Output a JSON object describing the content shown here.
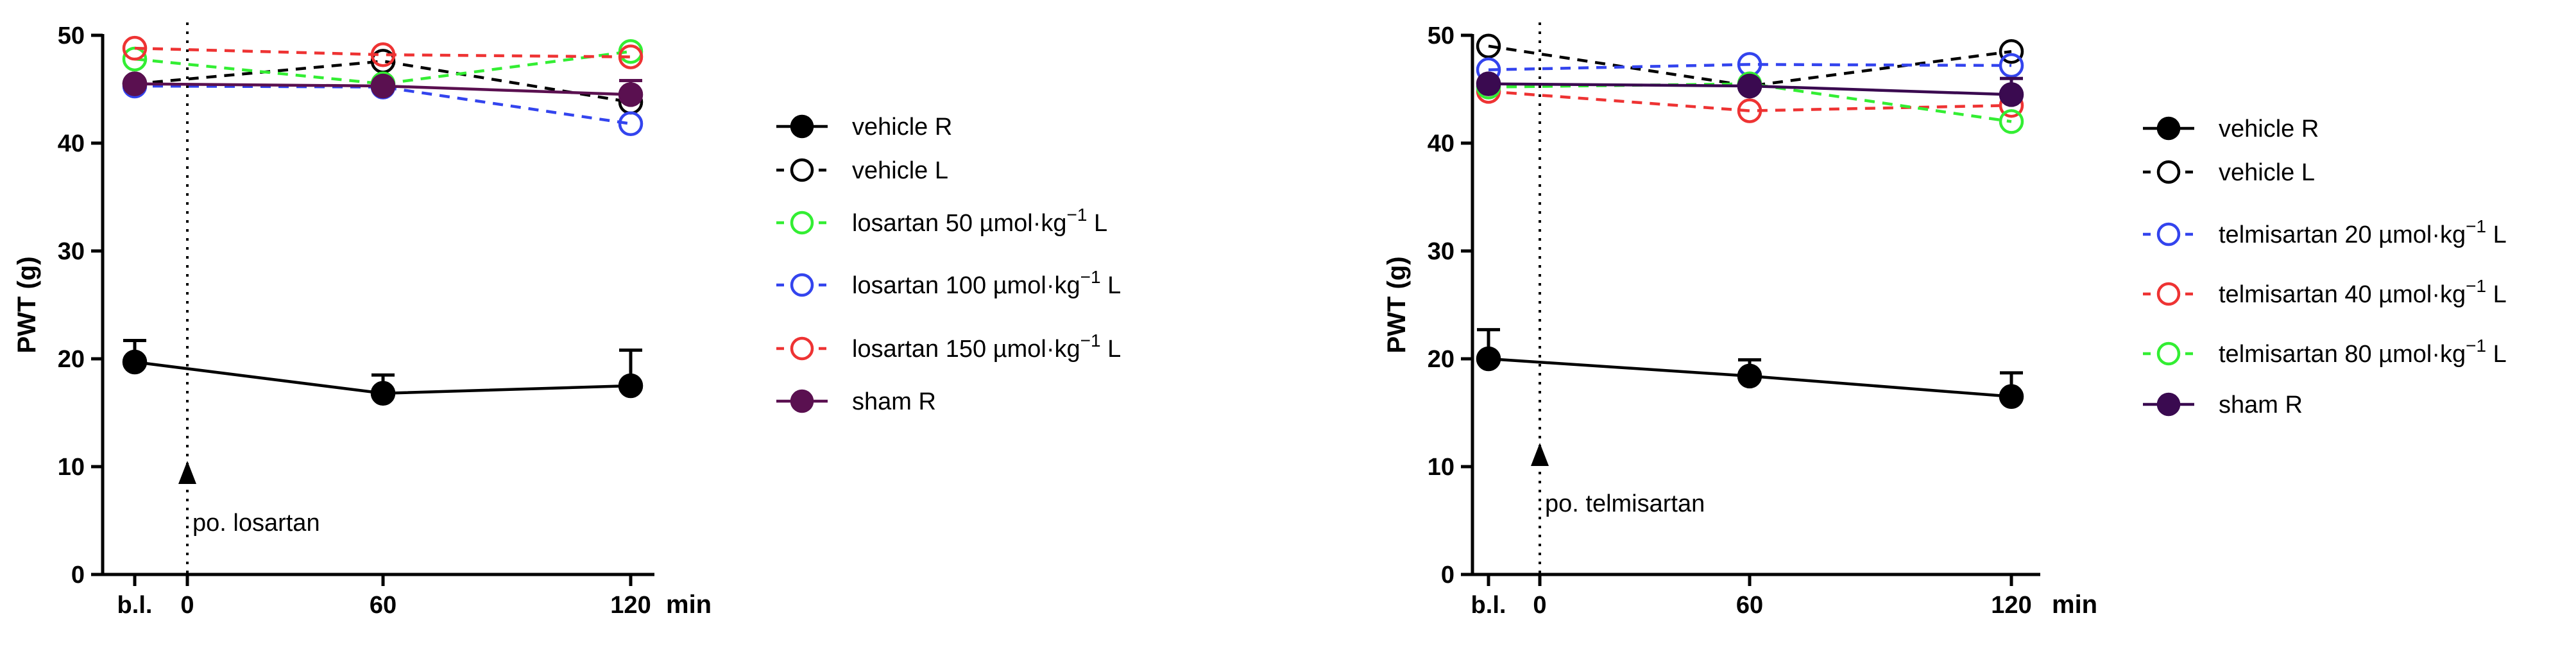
{
  "chart_data": [
    {
      "type": "line",
      "id": "losartan",
      "ylabel": "PWT (g)",
      "xlabel": "min",
      "ylim": [
        0,
        50
      ],
      "yticks": [
        0,
        10,
        20,
        30,
        40,
        50
      ],
      "xticks": [
        {
          "x": -15,
          "label": "b.l."
        },
        {
          "x": 0,
          "label": "0"
        },
        {
          "x": 60,
          "label": "60"
        },
        {
          "x": 120,
          "label": "120"
        }
      ],
      "annotation": "po. losartan",
      "series": [
        {
          "name": "vehicle R",
          "color": "#000000",
          "dashed": false,
          "filled": true,
          "x": [
            -15,
            60,
            120
          ],
          "y": [
            19.7,
            16.8,
            17.5
          ],
          "err": [
            2.0,
            1.7,
            3.3
          ]
        },
        {
          "name": "vehicle L",
          "color": "#000000",
          "dashed": true,
          "filled": false,
          "x": [
            -15,
            60,
            120
          ],
          "y": [
            45.5,
            47.6,
            43.8
          ],
          "err": [
            0,
            0,
            0
          ]
        },
        {
          "name": "losartan 50 µmol·kg",
          "sup": "−1",
          "suffix": " L",
          "color": "#33ee33",
          "dashed": true,
          "filled": false,
          "x": [
            -15,
            60,
            120
          ],
          "y": [
            47.8,
            45.5,
            48.5
          ],
          "err": [
            0,
            0,
            0
          ]
        },
        {
          "name": "losartan 100 µmol·kg",
          "sup": "−1",
          "suffix": " L",
          "color": "#3344ee",
          "dashed": true,
          "filled": false,
          "x": [
            -15,
            60,
            120
          ],
          "y": [
            45.3,
            45.2,
            41.8
          ],
          "err": [
            0,
            0,
            0
          ]
        },
        {
          "name": "losartan 150 µmol·kg",
          "sup": "−1",
          "suffix": " L",
          "color": "#ee3333",
          "dashed": true,
          "filled": false,
          "x": [
            -15,
            60,
            120
          ],
          "y": [
            48.8,
            48.2,
            48.0
          ],
          "err": [
            0,
            0,
            0
          ]
        },
        {
          "name": "sham R",
          "color": "#5a1050",
          "dashed": false,
          "filled": true,
          "x": [
            -15,
            60,
            120
          ],
          "y": [
            45.5,
            45.3,
            44.5
          ],
          "err": [
            0,
            0,
            1.3
          ]
        }
      ]
    },
    {
      "type": "line",
      "id": "telmisartan",
      "ylabel": "PWT (g)",
      "xlabel": "min",
      "ylim": [
        0,
        50
      ],
      "yticks": [
        0,
        10,
        20,
        30,
        40,
        50
      ],
      "xticks": [
        {
          "x": -15,
          "label": "b.l."
        },
        {
          "x": 0,
          "label": "0"
        },
        {
          "x": 60,
          "label": "60"
        },
        {
          "x": 120,
          "label": "120"
        }
      ],
      "annotation": "po. telmisartan",
      "series": [
        {
          "name": "vehicle R",
          "color": "#000000",
          "dashed": false,
          "filled": true,
          "x": [
            -15,
            60,
            120
          ],
          "y": [
            20.0,
            18.4,
            16.5
          ],
          "err": [
            2.7,
            1.5,
            2.2
          ]
        },
        {
          "name": "vehicle L",
          "color": "#000000",
          "dashed": true,
          "filled": false,
          "x": [
            -15,
            60,
            120
          ],
          "y": [
            49.0,
            45.3,
            48.5
          ],
          "err": [
            0,
            0,
            0
          ]
        },
        {
          "name": "telmisartan 20 µmol·kg",
          "sup": "−1",
          "suffix": " L",
          "color": "#3344ee",
          "dashed": true,
          "filled": false,
          "x": [
            -15,
            60,
            120
          ],
          "y": [
            46.8,
            47.3,
            47.2
          ],
          "err": [
            0,
            0,
            0
          ]
        },
        {
          "name": "telmisartan 40 µmol·kg",
          "sup": "−1",
          "suffix": " L",
          "color": "#ee3333",
          "dashed": true,
          "filled": false,
          "x": [
            -15,
            60,
            120
          ],
          "y": [
            44.8,
            43.0,
            43.5
          ],
          "err": [
            0,
            0,
            0
          ]
        },
        {
          "name": "telmisartan 80 µmol·kg",
          "sup": "−1",
          "suffix": " L",
          "color": "#33ee33",
          "dashed": true,
          "filled": false,
          "x": [
            -15,
            60,
            120
          ],
          "y": [
            45.2,
            45.5,
            42.0
          ],
          "err": [
            0,
            0,
            0
          ]
        },
        {
          "name": "sham R",
          "color": "#3a0a50",
          "dashed": false,
          "filled": true,
          "x": [
            -15,
            60,
            120
          ],
          "y": [
            45.5,
            45.3,
            44.5
          ],
          "err": [
            0,
            0,
            1.5
          ]
        }
      ]
    }
  ]
}
